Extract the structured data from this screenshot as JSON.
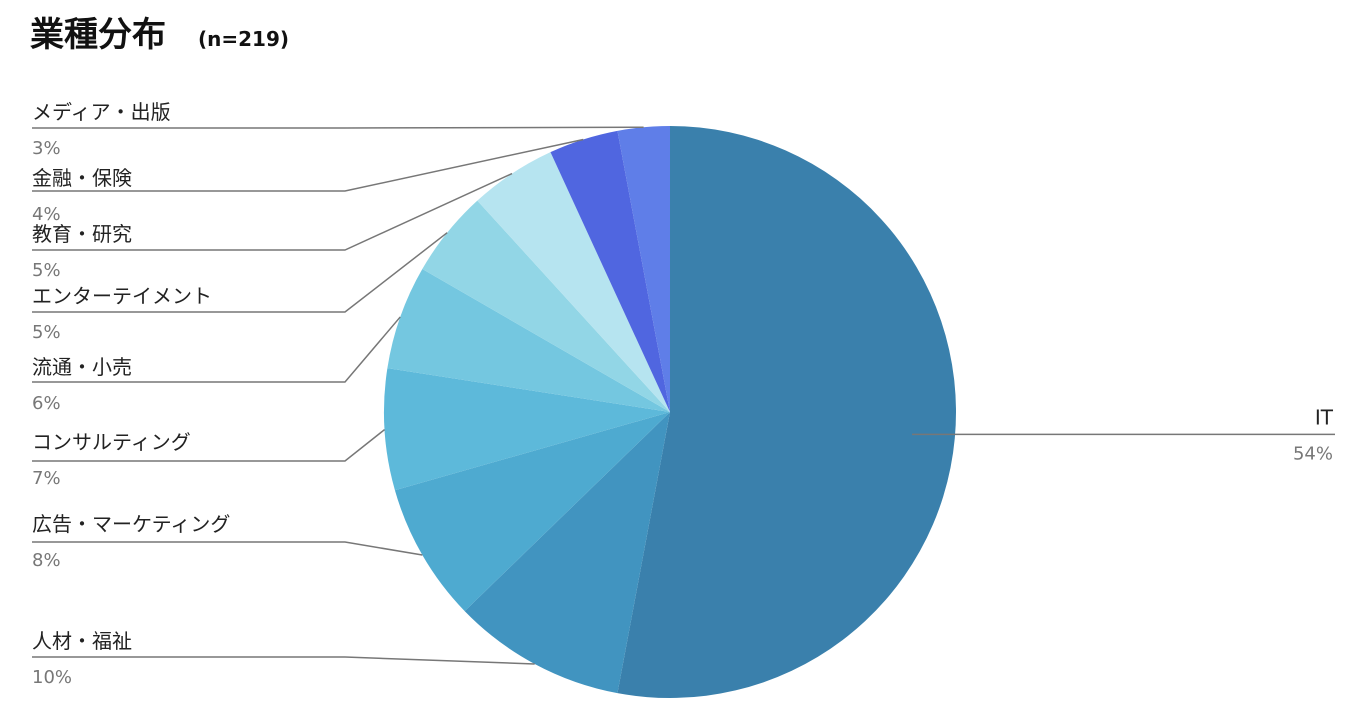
{
  "chart_data": {
    "type": "pie",
    "title": "業種分布",
    "subtitle": "(n=219)",
    "categories": [
      "IT",
      "人材・福祉",
      "広告・マーケティング",
      "コンサルティング",
      "流通・小売",
      "エンターテイメント",
      "教育・研究",
      "金融・保険",
      "メディア・出版"
    ],
    "values": [
      54,
      10,
      8,
      7,
      6,
      5,
      5,
      4,
      3
    ],
    "value_labels": [
      "54%",
      "10%",
      "8%",
      "7%",
      "6%",
      "5%",
      "5%",
      "4%",
      "3%"
    ],
    "colors": [
      "#3a80ac",
      "#4194c0",
      "#4eaad0",
      "#5db9da",
      "#74c7e0",
      "#92d6e6",
      "#b6e4f0",
      "#5066e0",
      "#5f7ee8"
    ]
  }
}
